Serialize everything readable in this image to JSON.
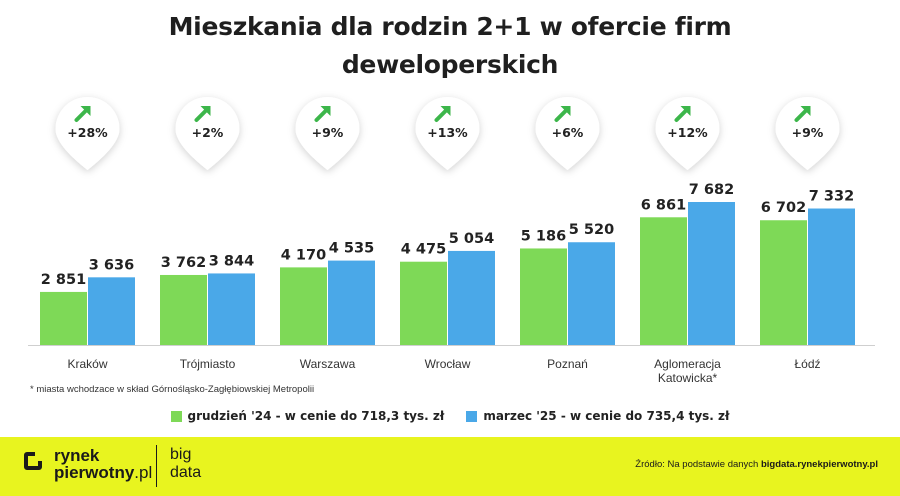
{
  "title_line1": "Mieszkania dla rodzin 2+1 w ofercie firm",
  "title_line2": "deweloperskich",
  "footnote": "* miasta wchodzace w skład Górnośląsko-Zagłębiowskiej Metropolii",
  "colors": {
    "green": "#7ed957",
    "blue": "#4aa8e8",
    "arrow": "#3cb64a",
    "footer": "#e8f41f"
  },
  "legend": [
    {
      "label": "grudzień '24 - w cenie do 718,3 tys. zł",
      "color": "#7ed957"
    },
    {
      "label": "marzec '25 - w cenie do 735,4 tys. zł",
      "color": "#4aa8e8"
    }
  ],
  "footer": {
    "logo_line1": "rynek",
    "logo_line2a": "pierwotny",
    "logo_line2b": ".pl",
    "big_line1": "big",
    "big_line2": "data",
    "source_prefix": "Źródło: Na podstawie danych ",
    "source_link": "bigdata.rynekpierwotny.pl"
  },
  "chart_data": {
    "type": "bar",
    "categories": [
      "Kraków",
      "Trójmiasto",
      "Warszawa",
      "Wrocław",
      "Poznań",
      "Aglomeracja Katowicka*",
      "Łódź"
    ],
    "category_lines": [
      [
        "Kraków"
      ],
      [
        "Trójmiasto"
      ],
      [
        "Warszawa"
      ],
      [
        "Wrocław"
      ],
      [
        "Poznań"
      ],
      [
        "Aglomeracja",
        "Katowicka*"
      ],
      [
        "Łódź"
      ]
    ],
    "series": [
      {
        "name": "grudzień '24 - w cenie do 718,3 tys. zł",
        "values": [
          2851,
          3762,
          4170,
          4475,
          5186,
          6861,
          6702
        ],
        "labels": [
          "2 851",
          "3 762",
          "4 170",
          "4 475",
          "5 186",
          "6 861",
          "6 702"
        ]
      },
      {
        "name": "marzec '25 - w cenie do 735,4 tys. zł",
        "values": [
          3636,
          3844,
          4535,
          5054,
          5520,
          7682,
          7332
        ],
        "labels": [
          "3 636",
          "3 844",
          "4 535",
          "5 054",
          "5 520",
          "7 682",
          "7 332"
        ]
      }
    ],
    "changes": [
      "+28%",
      "+2%",
      "+9%",
      "+13%",
      "+6%",
      "+12%",
      "+9%"
    ],
    "ylim": [
      0,
      7682
    ],
    "grid": false,
    "legend_position": "bottom"
  }
}
